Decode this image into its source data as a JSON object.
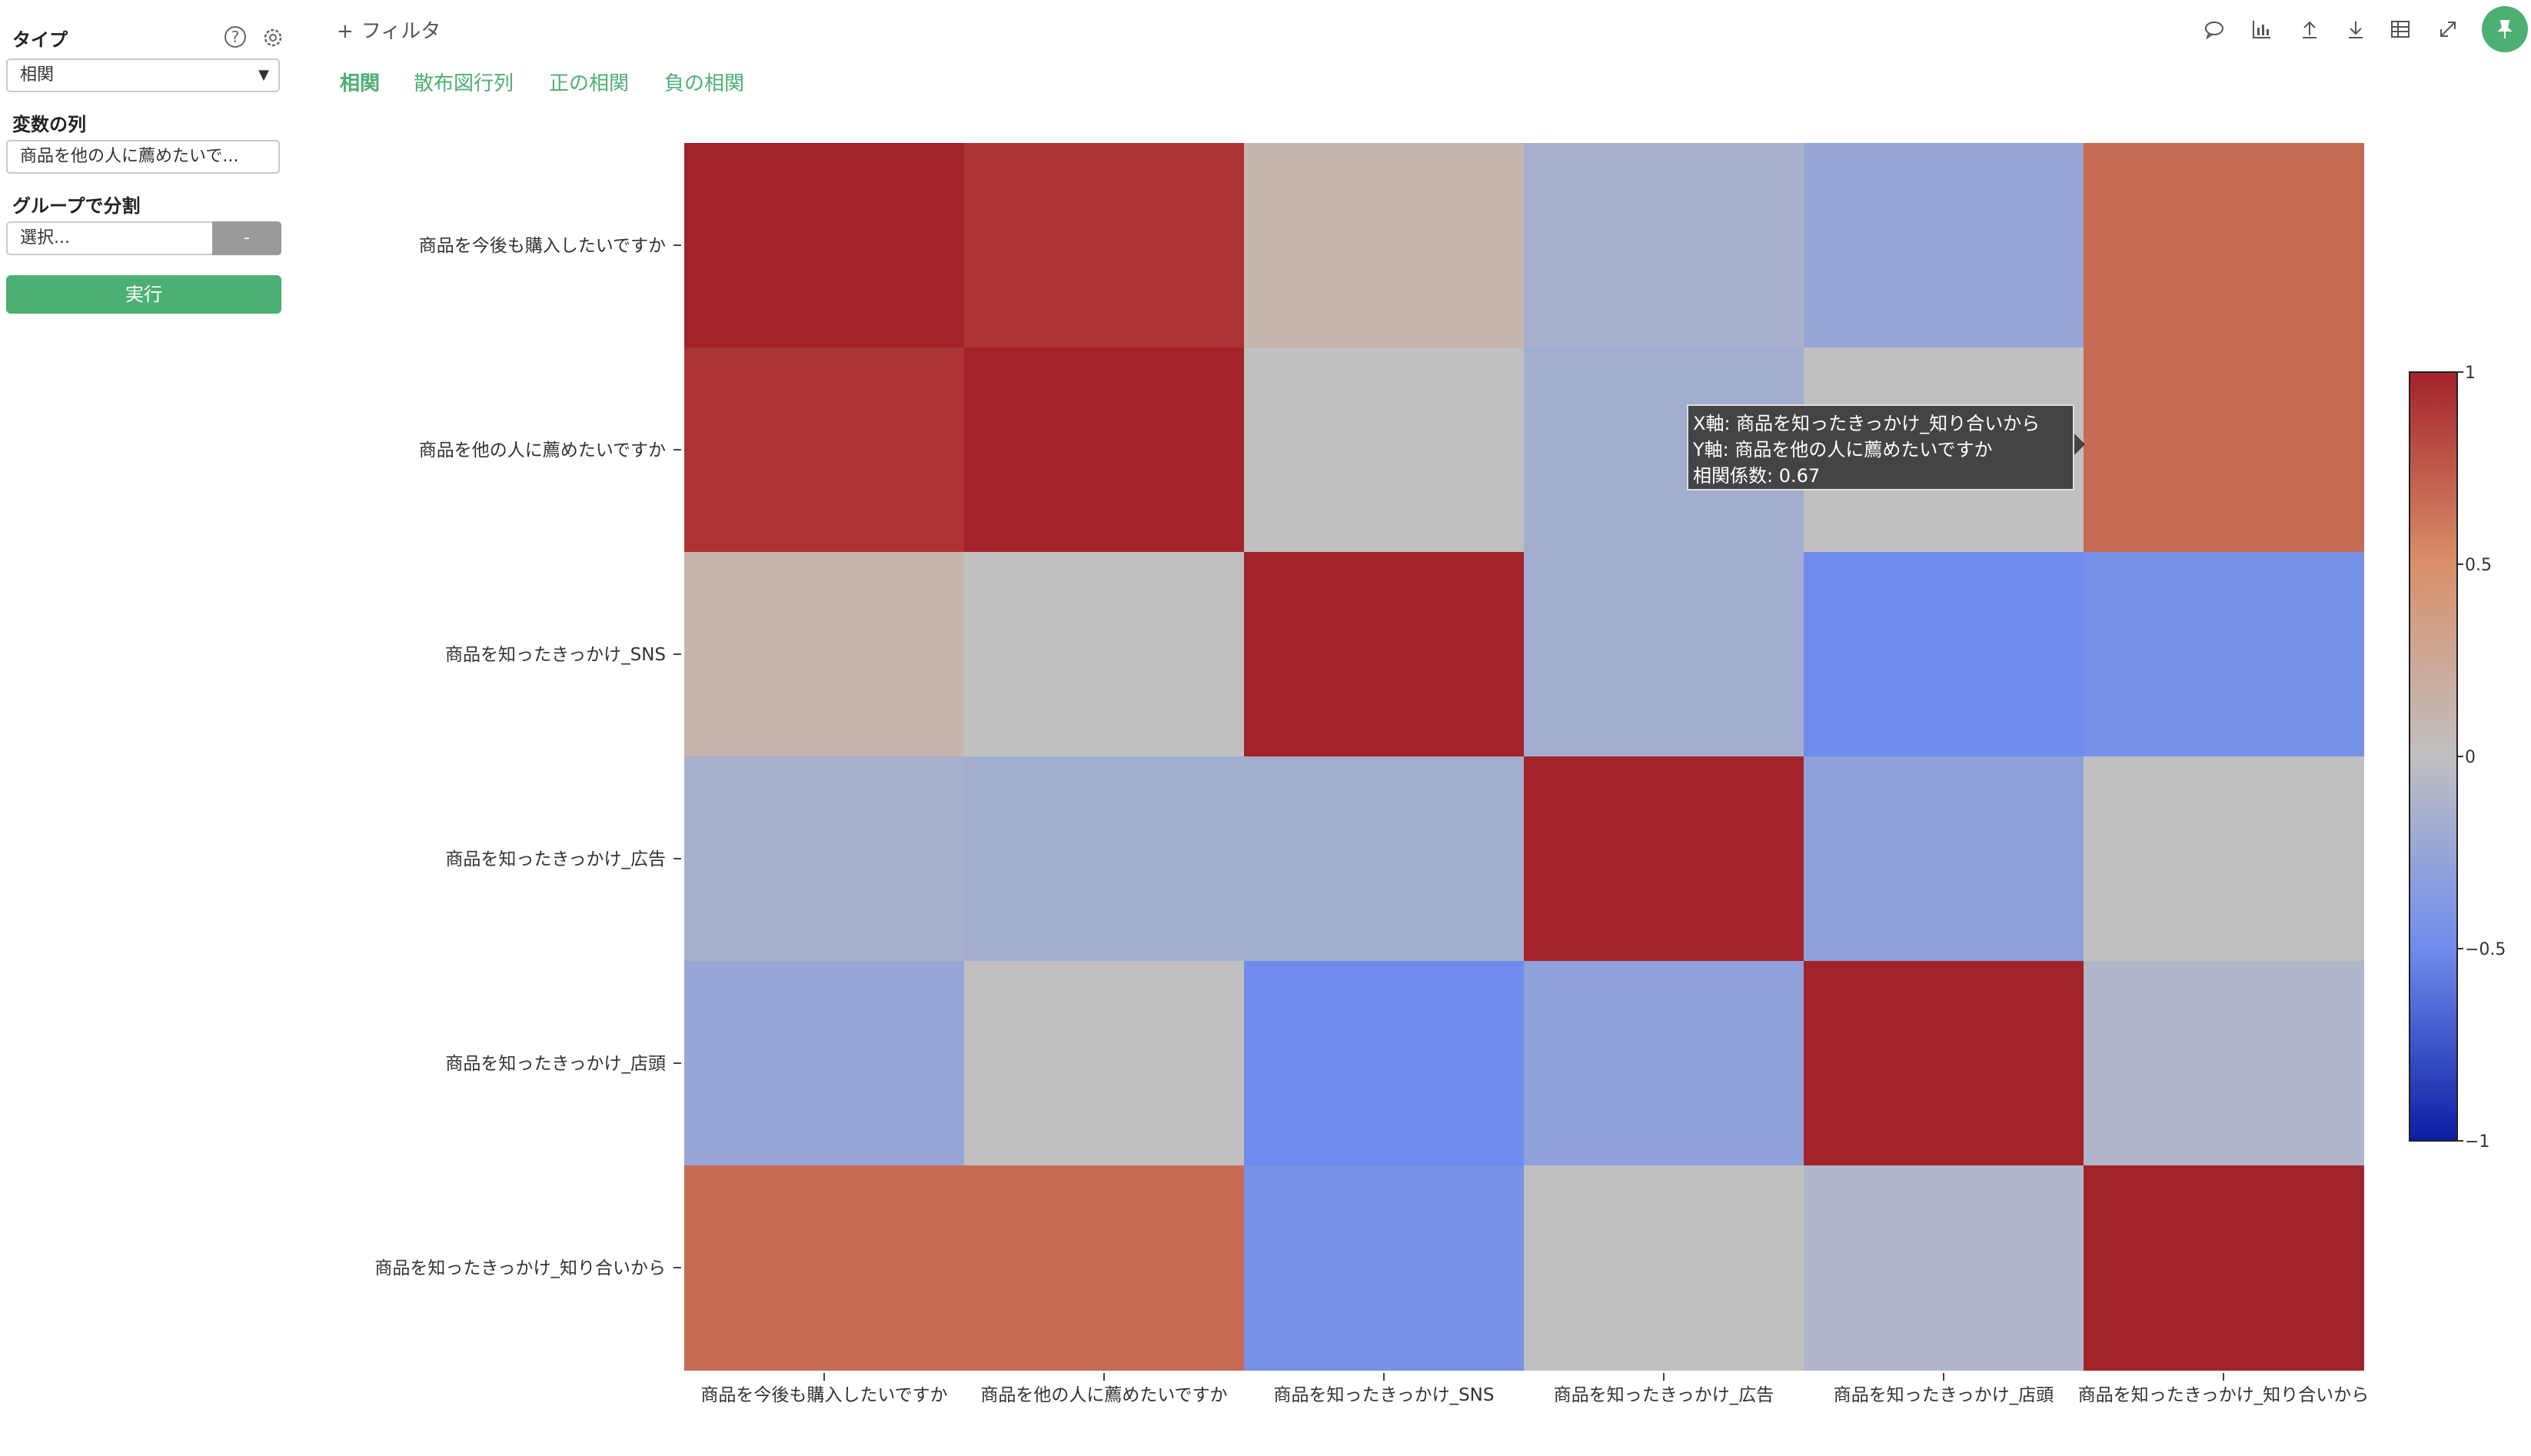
{
  "sidebar": {
    "type_label": "タイプ",
    "type_value": "相関",
    "variables_label": "変数の列",
    "variables_value": "商品を他の人に薦めたいで...",
    "group_label": "グループで分割",
    "group_placeholder": "選択...",
    "group_button": "-",
    "run_button": "実行",
    "help_icon": "?"
  },
  "header": {
    "filter_label": "フィルタ",
    "filter_icon": "+",
    "tabs": [
      "相関",
      "散布図行列",
      "正の相関",
      "負の相関"
    ],
    "active_tab": 0,
    "tools": [
      "comment-icon",
      "chart-icon",
      "upload-icon",
      "download-icon",
      "table-icon",
      "expand-icon",
      "pin-icon"
    ]
  },
  "tooltip": {
    "line1": "X軸: 商品を知ったきっかけ_知り合いから",
    "line2": "Y軸: 商品を他の人に薦めたいですか",
    "line3": "相関係数: 0.67"
  },
  "colors": {
    "accent": "#4caf73",
    "scale_low": "#0a1ea3",
    "scale_mid": "#c0c0c0",
    "scale_high": "#a3232a"
  },
  "chart_data": {
    "type": "heatmap",
    "title": "",
    "x_labels": [
      "商品を今後も購入したいですか",
      "商品を他の人に薦めたいですか",
      "商品を知ったきっかけ_SNS",
      "商品を知ったきっかけ_広告",
      "商品を知ったきっかけ_店頭",
      "商品を知ったきっかけ_知り合いから"
    ],
    "y_labels": [
      "商品を今後も購入したいですか",
      "商品を他の人に薦めたいですか",
      "商品を知ったきっかけ_SNS",
      "商品を知ったきっかけ_広告",
      "商品を知ったきっかけ_店頭",
      "商品を知ったきっかけ_知り合いから"
    ],
    "values": [
      [
        1.0,
        0.92,
        0.1,
        -0.15,
        -0.25,
        0.67
      ],
      [
        0.92,
        1.0,
        0.0,
        -0.18,
        0.0,
        0.67
      ],
      [
        0.1,
        0.0,
        1.0,
        -0.18,
        -0.5,
        -0.45
      ],
      [
        -0.15,
        -0.18,
        -0.18,
        1.0,
        -0.3,
        0.0
      ],
      [
        -0.25,
        0.0,
        -0.5,
        -0.3,
        1.0,
        -0.1
      ],
      [
        0.67,
        0.67,
        -0.45,
        0.0,
        -0.1,
        1.0
      ]
    ],
    "colorbar": {
      "min": -1,
      "max": 1,
      "tick_labels": [
        "1",
        "0.5",
        "0",
        "−0.5",
        "−1"
      ],
      "tick_values": [
        1,
        0.5,
        0,
        -0.5,
        -1
      ]
    },
    "legend_position": "right"
  }
}
